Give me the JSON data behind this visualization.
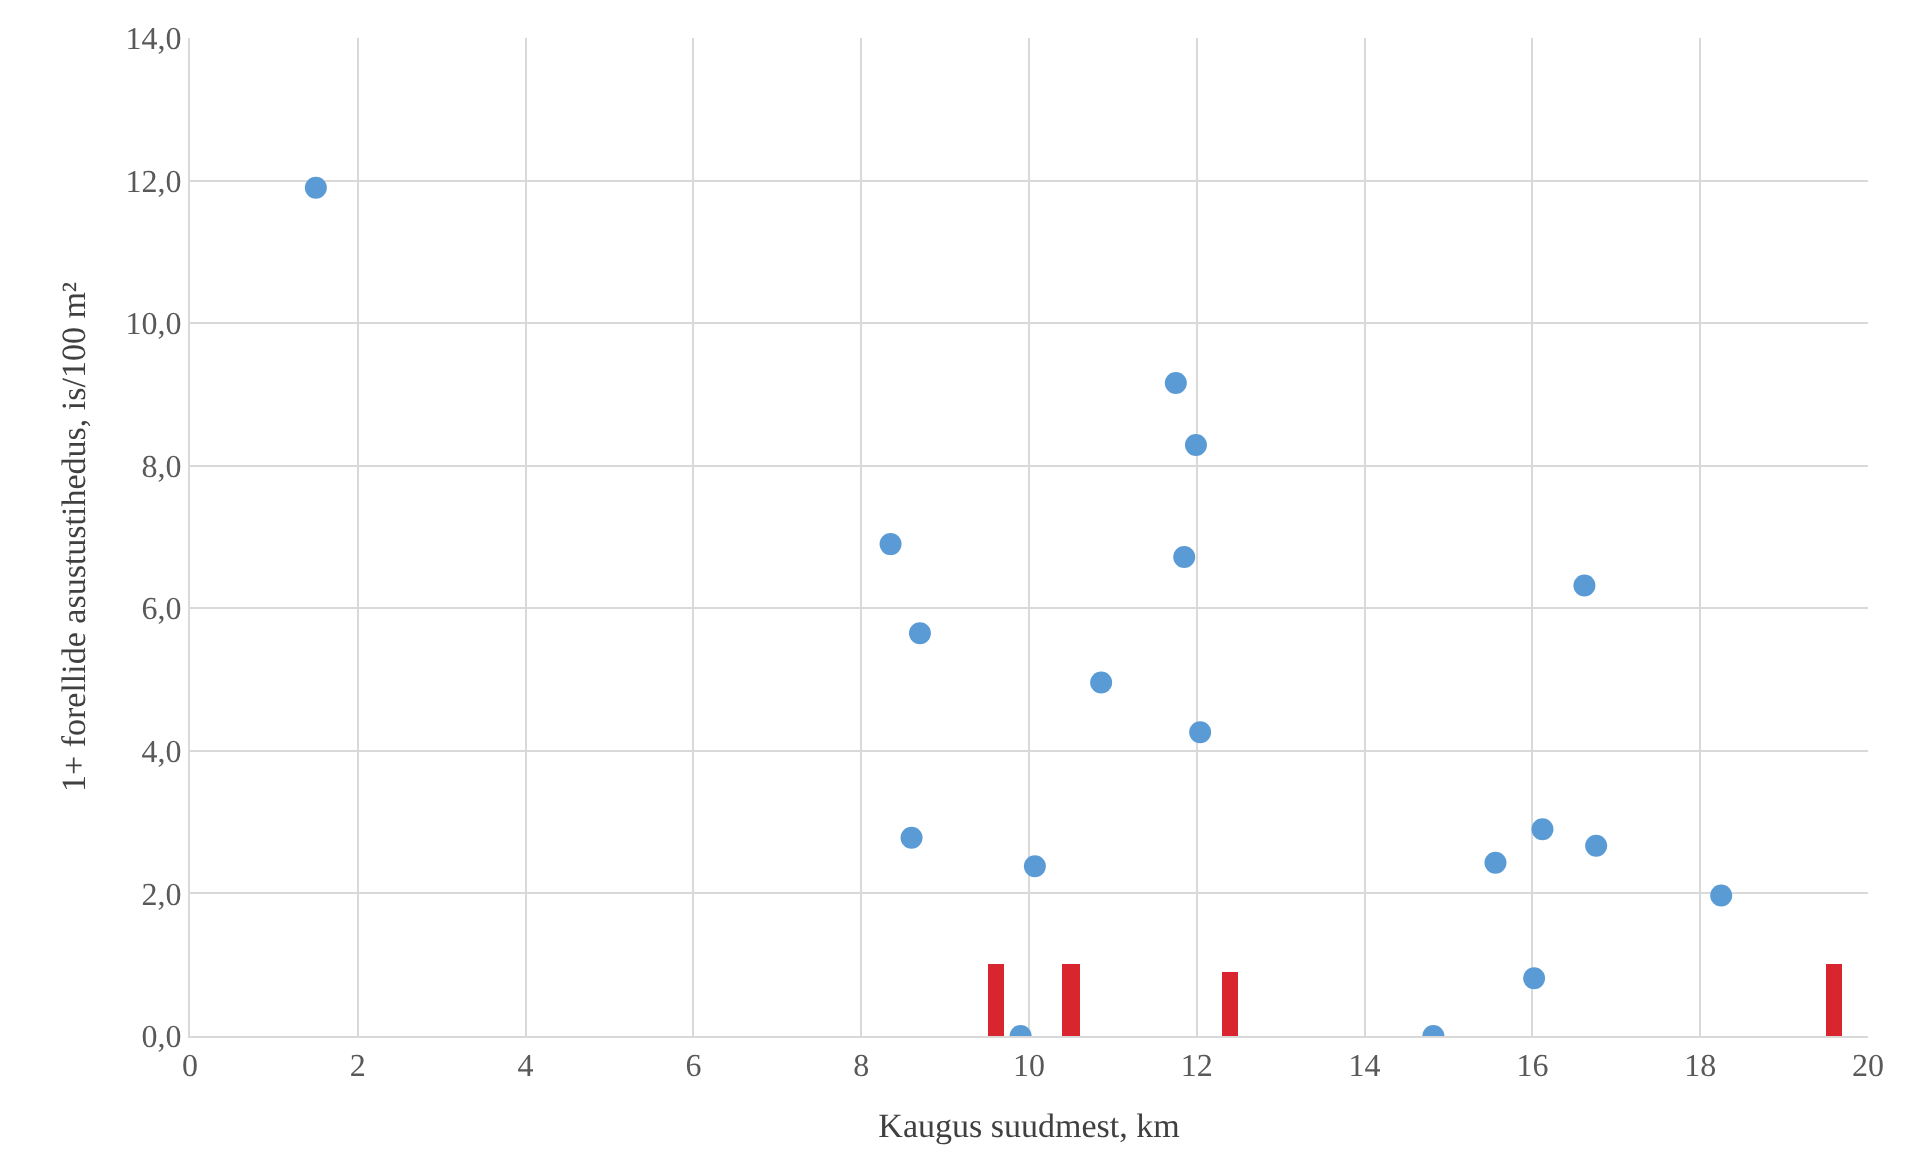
{
  "chart_data": {
    "type": "scatter",
    "xlabel": "Kaugus suudmest, km",
    "ylabel": "1+ forellide asustustihedus, is/100 m²",
    "xlim": [
      0,
      20
    ],
    "xticks": [
      0,
      2,
      4,
      6,
      8,
      10,
      12,
      14,
      16,
      18,
      20
    ],
    "ylim": [
      0,
      14
    ],
    "yticks": [
      {
        "value": 0,
        "label": "0,0"
      },
      {
        "value": 2,
        "label": "2,0"
      },
      {
        "value": 4,
        "label": "4,0"
      },
      {
        "value": 6,
        "label": "6,0"
      },
      {
        "value": 8,
        "label": "8,0"
      },
      {
        "value": 10,
        "label": "10,0"
      },
      {
        "value": 12,
        "label": "12,0"
      },
      {
        "value": 14,
        "label": "14,0"
      }
    ],
    "grid": true,
    "marker": "circle",
    "series": [
      {
        "type": "bar",
        "color": "#d9262e",
        "x": [
          9.6,
          10.5,
          12.4,
          19.6
        ],
        "values": [
          1.0,
          1.0,
          0.9,
          1.0
        ]
      },
      {
        "color": "#5b9bd5",
        "x": [
          1.5,
          8.35,
          8.7,
          8.6,
          9.9,
          10.07,
          10.86,
          11.75,
          11.85,
          11.99,
          12.04,
          14.82,
          15.56,
          16.02,
          16.12,
          16.62,
          16.76,
          18.25
        ],
        "values": [
          11.9,
          6.9,
          5.65,
          2.78,
          0,
          2.38,
          4.96,
          9.16,
          6.72,
          8.29,
          4.26,
          0,
          2.43,
          0.81,
          2.9,
          6.32,
          2.67,
          1.97
        ]
      }
    ]
  }
}
